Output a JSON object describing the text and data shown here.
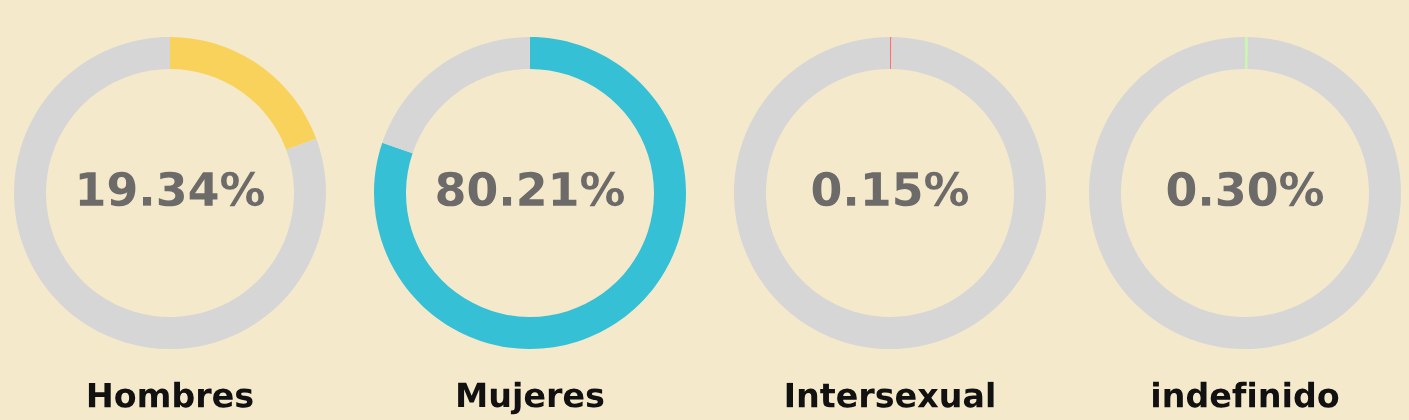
{
  "chart_data": [
    {
      "type": "donut",
      "title": "Hombres",
      "categories": [
        null,
        null
      ],
      "values": [
        19.34,
        80.66
      ],
      "colors": [
        "#f9d25b",
        "#d6d6d6"
      ],
      "annotations": [
        "19.34%"
      ]
    },
    {
      "type": "donut",
      "title": "Mujeres",
      "categories": [
        null,
        null
      ],
      "values": [
        80.21,
        19.79
      ],
      "colors": [
        "#35c0d6",
        "#d6d6d6"
      ],
      "annotations": [
        "80.21%"
      ]
    },
    {
      "type": "donut",
      "title": "Intersexual",
      "categories": [
        null,
        null
      ],
      "values": [
        0.15,
        99.85
      ],
      "colors": [
        "#ff6f6f",
        "#d6d6d6"
      ],
      "annotations": [
        "0.15%"
      ]
    },
    {
      "type": "donut",
      "title": "indefinido",
      "categories": [
        null,
        null
      ],
      "values": [
        0.3,
        99.7
      ],
      "colors": [
        "#c8f7b0",
        "#d6d6d6"
      ],
      "annotations": [
        "0.30%"
      ]
    }
  ]
}
